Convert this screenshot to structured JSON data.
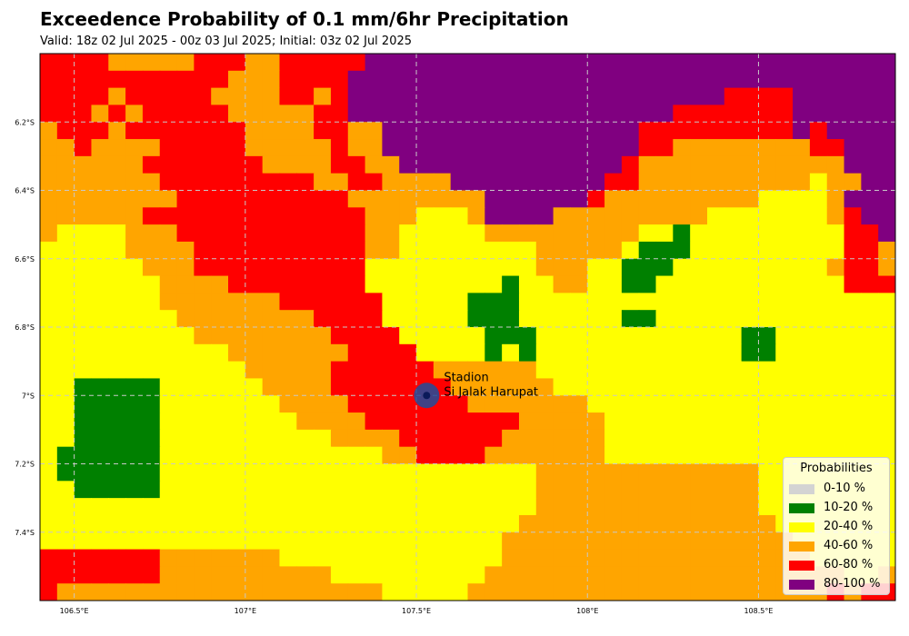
{
  "title": "Exceedence Probability of 0.1 mm/6hr Precipitation",
  "subtitle": "Valid: 18z 02 Jul 2025 - 00z 03 Jul 2025; Initial: 03z 02 Jul 2025",
  "chart_data": {
    "type": "heatmap",
    "title": "Exceedence Probability of 0.1 mm/6hr Precipitation",
    "xlim": [
      106.4,
      108.9
    ],
    "ylim": [
      -7.6,
      -6.0
    ],
    "x_ticks": [
      "106.5°E",
      "107°E",
      "107.5°E",
      "108°E",
      "108.5°E"
    ],
    "x_tick_values": [
      106.5,
      107.0,
      107.5,
      108.0,
      108.5
    ],
    "y_ticks": [
      "6.2°S",
      "6.4°S",
      "6.6°S",
      "6.8°S",
      "7°S",
      "7.2°S",
      "7.4°S"
    ],
    "y_tick_values": [
      -6.2,
      -6.4,
      -6.6,
      -6.8,
      -7.0,
      -7.2,
      -7.4
    ],
    "grid": true,
    "cell_size_deg": 0.05,
    "classes": [
      {
        "label": "0-10 %",
        "color": "#d3d3d3"
      },
      {
        "label": "10-20 %",
        "color": "#008000"
      },
      {
        "label": "20-40 %",
        "color": "#ffff00"
      },
      {
        "label": "40-60 %",
        "color": "#ffa500"
      },
      {
        "label": "60-80 %",
        "color": "#ff0000"
      },
      {
        "label": "80-100 %",
        "color": "#800080"
      }
    ],
    "class_grid": [
      "44443333344433444445555555555555555555555555555555",
      "44444444444333444455555555555555555555555555555555",
      "44443444443333443455555555555555555555554444555555",
      "44434344444333334455555555555555555554444444555555",
      "34443444444433334433555555555555555444444444545555",
      "33433334444433333433555555555555555443333333344555",
      "33333344444443333443355555555555554333333333333555",
      "33333334444444443344333355555555544333333333323355",
      "33333333444444444433333333555555433333333322223555",
      "33333344444444444443332223555533333333322222223455",
      "32222333444444444443322222333333333221222222222445",
      "22222333344444444443322222222333332111222222222443",
      "22222233344444444442222222222333221112222222223443",
      "22222223333444444442222222212233221122222222222444",
      "22222223333333444444222221112222222222222222222222",
      "22222222333333334444222221112222221122222222222222",
      "22222222233333333444422222111222222222222112222222",
      "22222222222333333344442222121222222222222112222222",
      "22222222222233333444444333333222222222222222222222",
      "22111112222223333444444433333322222222222222222222",
      "22111112222222333344444443333333222222222222222222",
      "22111112222222233334444444443333322222222222222222",
      "22111112222222222333344444433333322222222222222222",
      "21111112222222222222334444333333322222222222222222",
      "21111112222222222222222222222333333333333322222222",
      "22111112222222222222222222222333333333333322222222",
      "22222222222222222222222222222333333333333322222222",
      "22222222222222222222222222223333333333333332222222",
      "22222222222222222222222222233333333333333333222222",
      "44444443333333222222222222233333333333333333322222",
      "44444443333333333222222222333333333333333333333223",
      "43333333333333333333222223333333333333333333334344",
      "33333333333333333333333333333333333333333344444444"
    ],
    "station": {
      "label_line1": "Stadion",
      "label_line2": "Si Jalak Harupat",
      "lon": 107.53,
      "lat": -7.0
    }
  },
  "legend": {
    "title": "Probabilities",
    "items": [
      {
        "label": "0-10 %",
        "color": "#d3d3d3"
      },
      {
        "label": "10-20 %",
        "color": "#008000"
      },
      {
        "label": "20-40 %",
        "color": "#ffff00"
      },
      {
        "label": "40-60 %",
        "color": "#ffa500"
      },
      {
        "label": "60-80 %",
        "color": "#ff0000"
      },
      {
        "label": "80-100 %",
        "color": "#800080"
      }
    ]
  }
}
